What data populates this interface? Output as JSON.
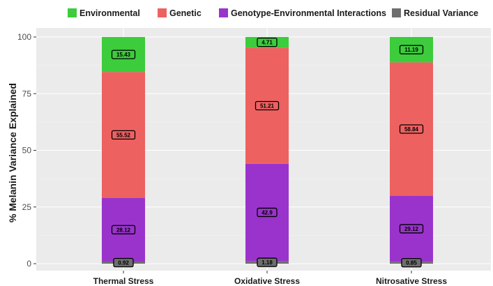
{
  "chart_data": {
    "type": "bar",
    "stacked": true,
    "categories": [
      "Thermal Stress",
      "Oxidative Stress",
      "Nitrosative Stress"
    ],
    "ylabel": "% Melanin Variance Explained",
    "xlabel": "",
    "ylim": [
      0,
      100
    ],
    "yticks": [
      0,
      25,
      50,
      75,
      100
    ],
    "grid": true,
    "legend_position": "top",
    "series": [
      {
        "name": "Residual Variance",
        "color": "#6e6e6e",
        "values": [
          0.92,
          1.18,
          0.85
        ],
        "labels": [
          "0.92",
          "1.18",
          "0.85"
        ]
      },
      {
        "name": "Genotype-Environmental Interactions",
        "color": "#9a33cc",
        "values": [
          28.12,
          42.9,
          29.12
        ],
        "labels": [
          "28.12",
          "42.9",
          "29.12"
        ]
      },
      {
        "name": "Genetic",
        "color": "#ee6161",
        "values": [
          55.52,
          51.21,
          58.84
        ],
        "labels": [
          "55.52",
          "51.21",
          "58.84"
        ]
      },
      {
        "name": "Environmental",
        "color": "#3ccc3c",
        "values": [
          15.43,
          4.71,
          11.19
        ],
        "labels": [
          "15.43",
          "4.71",
          "11.19"
        ]
      }
    ],
    "legend_order": [
      "Environmental",
      "Genetic",
      "Genotype-Environmental Interactions",
      "Residual Variance"
    ]
  }
}
